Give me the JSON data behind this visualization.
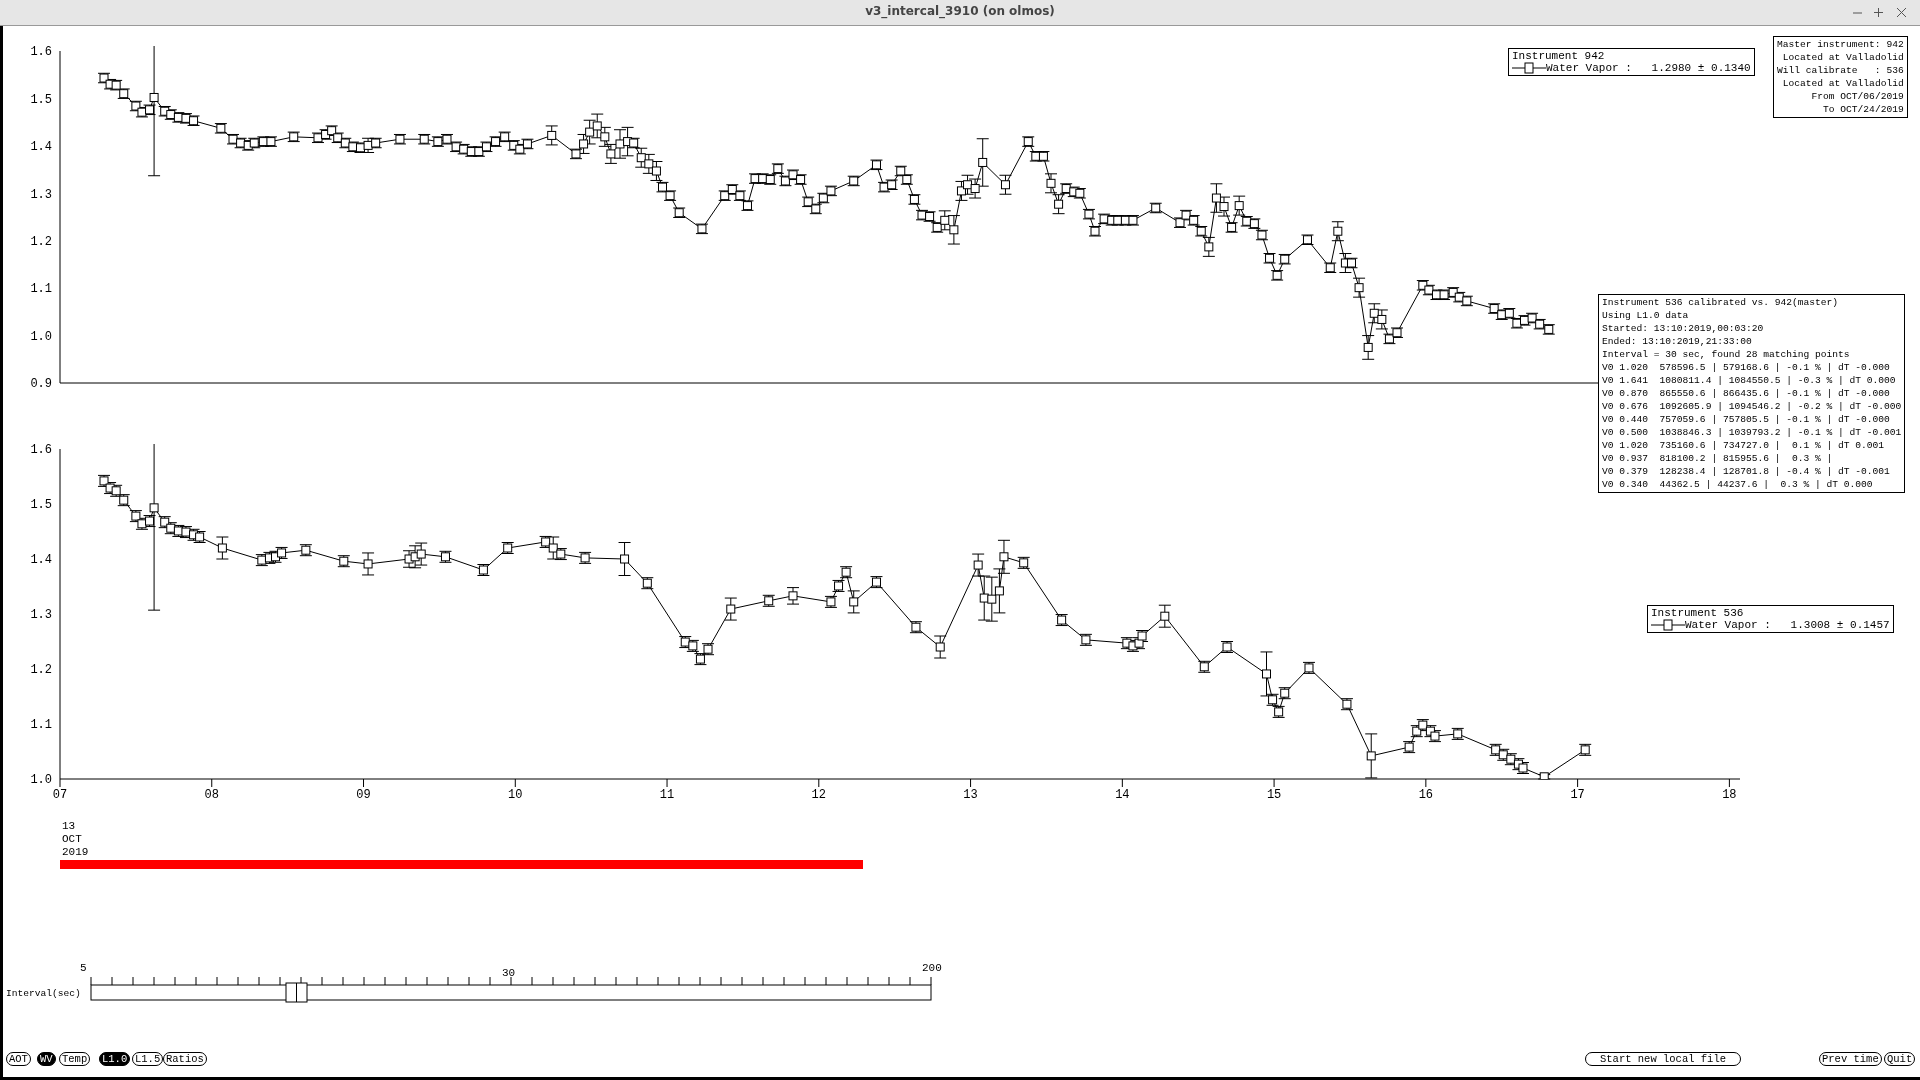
{
  "chart_data": [
    {
      "type": "line",
      "legend_title": "Instrument 942",
      "legend": "top right",
      "marker": "square",
      "line_style": "solid",
      "tick_labels": "y",
      "xlim": [
        7,
        18.07
      ],
      "ylim": [
        0.9,
        1.6
      ],
      "yticks": [
        0.9,
        {
          "value": 1,
          "label": "1.0"
        },
        1.1,
        1.2,
        1.3,
        1.4,
        1.5,
        1.6
      ],
      "annotations": [
        "Master instrument: 942\nLocated at Valladolid\nWill calibrate   : 536\nLocated at Valladolid\nFrom OCT/06/2019\nTo OCT/24/2019",
        "Instrument 536 calibrated vs. 942(master)\nUsing L1.0 data\nStarted: 13:10:2019,00:03:20\nEnded: 13:10:2019,21:33:00\nInterval = 30 sec, found 28 matching points\nV0 1.020  578596.5 | 579168.6 | -0.1 % | dT -0.000\nV0 1.641  1080811.4 | 1084550.5 | -0.3 % | dT 0.000\nV0 0.870  865550.6 | 866435.6 | -0.1 % | dT -0.000\nV0 0.676  1092605.9 | 1094546.2 | -0.2 % | dT -0.000\nV0 0.440  757059.6 | 757805.5 | -0.1 % | dT -0.000\nV0 0.500  1038846.3 | 1039793.2 | -0.1 % | dT -0.001\nV0 1.020  735160.6 | 734727.0 |  0.1 % | dT 0.001\nV0 0.937  818100.2 | 815955.6 |  0.3 % |\nV0 0.379  128238.4 | 128701.8 | -0.4 % | dT -0.001\nV0 0.340  44362.5 | 44237.6 |  0.3 % | dT 0.000"
      ],
      "series": [
        {
          "name": "Water Vapor :   1.2980 ± 0.1340",
          "color": "#000000",
          "x": [
            7.29,
            7.33,
            7.37,
            7.42,
            7.5,
            7.54,
            7.59,
            7.62,
            7.69,
            7.73,
            7.78,
            7.83,
            7.88,
            8.06,
            8.14,
            8.19,
            8.24,
            8.28,
            8.34,
            8.39,
            8.54,
            8.7,
            8.75,
            8.79,
            8.83,
            8.88,
            8.93,
            8.98,
            9.03,
            9.08,
            9.24,
            9.4,
            9.49,
            9.55,
            9.61,
            9.66,
            9.71,
            9.76,
            9.81,
            9.87,
            9.93,
            9.99,
            10.03,
            10.08,
            10.24,
            10.4,
            10.45,
            10.49,
            10.54,
            10.59,
            10.63,
            10.69,
            10.74,
            10.78,
            10.83,
            10.88,
            10.93,
            10.97,
            11.02,
            11.08,
            11.23,
            11.38,
            11.43,
            11.48,
            11.53,
            11.58,
            11.63,
            11.68,
            11.73,
            11.78,
            11.83,
            11.88,
            11.93,
            11.98,
            12.03,
            12.08,
            12.23,
            12.38,
            12.43,
            12.48,
            12.54,
            12.58,
            12.63,
            12.68,
            12.73,
            12.78,
            12.83,
            12.89,
            12.94,
            12.98,
            13.03,
            13.08,
            13.23,
            13.38,
            13.43,
            13.48,
            13.53,
            13.58,
            13.63,
            13.68,
            13.72,
            13.78,
            13.82,
            13.88,
            13.93,
            13.97,
            14.02,
            14.07,
            14.22,
            14.38,
            14.42,
            14.47,
            14.52,
            14.57,
            14.62,
            14.67,
            14.72,
            14.77,
            14.82,
            14.87,
            14.92,
            14.97,
            15.02,
            15.07,
            15.22,
            15.37,
            15.42,
            15.47,
            15.51,
            15.56,
            15.62,
            15.66,
            15.71,
            15.76,
            15.81,
            15.98,
            16.02,
            16.07,
            16.12,
            16.18,
            16.22,
            16.27,
            16.45,
            16.5,
            16.55,
            16.6,
            16.65,
            16.7,
            16.75,
            16.81
          ],
          "values": [
            1.543,
            1.53,
            1.528,
            1.51,
            1.484,
            1.471,
            1.476,
            1.502,
            1.473,
            1.466,
            1.46,
            1.458,
            1.453,
            1.437,
            1.414,
            1.406,
            1.401,
            1.406,
            1.409,
            1.409,
            1.419,
            1.417,
            1.424,
            1.432,
            1.417,
            1.406,
            1.398,
            1.396,
            1.401,
            1.406,
            1.414,
            1.414,
            1.409,
            1.414,
            1.398,
            1.393,
            1.388,
            1.388,
            1.398,
            1.409,
            1.419,
            1.401,
            1.393,
            1.404,
            1.422,
            1.383,
            1.404,
            1.429,
            1.442,
            1.419,
            1.383,
            1.404,
            1.409,
            1.406,
            1.375,
            1.362,
            1.347,
            1.313,
            1.295,
            1.259,
            1.225,
            1.295,
            1.308,
            1.295,
            1.274,
            1.331,
            1.331,
            1.329,
            1.352,
            1.326,
            1.339,
            1.329,
            1.282,
            1.267,
            1.29,
            1.305,
            1.326,
            1.36,
            1.313,
            1.318,
            1.347,
            1.329,
            1.287,
            1.254,
            1.251,
            1.228,
            1.243,
            1.223,
            1.305,
            1.318,
            1.31,
            1.365,
            1.318,
            1.409,
            1.378,
            1.378,
            1.321,
            1.277,
            1.31,
            1.303,
            1.3,
            1.256,
            1.22,
            1.246,
            1.243,
            1.243,
            1.243,
            1.243,
            1.269,
            1.238,
            1.254,
            1.243,
            1.22,
            1.187,
            1.29,
            1.272,
            1.228,
            1.274,
            1.241,
            1.236,
            1.212,
            1.163,
            1.127,
            1.161,
            1.202,
            1.143,
            1.22,
            1.153,
            1.153,
            1.101,
            0.975,
            1.047,
            1.034,
            0.993,
            1.006,
            1.106,
            1.096,
            1.086,
            1.086,
            1.091,
            1.081,
            1.073,
            1.057,
            1.044,
            1.047,
            1.026,
            1.032,
            1.037,
            1.024,
            1.013
          ],
          "errors": [
            0.01,
            0.01,
            0.01,
            0.01,
            0.01,
            0.01,
            0.01,
            0.165,
            0.01,
            0.01,
            0.01,
            0.01,
            0.01,
            0.01,
            0.01,
            0.01,
            0.01,
            0.01,
            0.01,
            0.01,
            0.01,
            0.01,
            0.01,
            0.01,
            0.01,
            0.01,
            0.01,
            0.01,
            0.015,
            0.01,
            0.01,
            0.01,
            0.01,
            0.01,
            0.01,
            0.01,
            0.01,
            0.01,
            0.01,
            0.01,
            0.01,
            0.01,
            0.01,
            0.01,
            0.02,
            0.01,
            0.02,
            0.025,
            0.025,
            0.02,
            0.02,
            0.03,
            0.03,
            0.01,
            0.02,
            0.02,
            0.02,
            0.01,
            0.01,
            0.01,
            0.01,
            0.01,
            0.01,
            0.01,
            0.01,
            0.01,
            0.01,
            0.01,
            0.01,
            0.01,
            0.01,
            0.01,
            0.01,
            0.01,
            0.01,
            0.01,
            0.01,
            0.01,
            0.01,
            0.01,
            0.01,
            0.01,
            0.01,
            0.01,
            0.01,
            0.01,
            0.02,
            0.03,
            0.02,
            0.02,
            0.02,
            0.05,
            0.02,
            0.01,
            0.01,
            0.01,
            0.02,
            0.02,
            0.01,
            0.01,
            0.01,
            0.01,
            0.01,
            0.01,
            0.01,
            0.01,
            0.01,
            0.01,
            0.01,
            0.01,
            0.01,
            0.01,
            0.01,
            0.02,
            0.03,
            0.02,
            0.01,
            0.02,
            0.01,
            0.01,
            0.01,
            0.01,
            0.01,
            0.01,
            0.01,
            0.01,
            0.02,
            0.02,
            0.01,
            0.02,
            0.025,
            0.02,
            0.02,
            0.01,
            0.01,
            0.01,
            0.01,
            0.01,
            0.01,
            0.01,
            0.01,
            0.01,
            0.01,
            0.01,
            0.01,
            0.01,
            0.01,
            0.01,
            0.01,
            0.01
          ]
        }
      ]
    },
    {
      "type": "line",
      "legend_title": "Instrument 536",
      "legend": "right",
      "marker": "square",
      "line_style": "solid",
      "xlim": [
        7,
        18.07
      ],
      "ylim": [
        1.0,
        1.6
      ],
      "xticks": [
        {
          "value": 7,
          "label": "07"
        },
        {
          "value": 8,
          "label": "08"
        },
        {
          "value": 9,
          "label": "09"
        },
        {
          "value": 10,
          "label": "10"
        },
        {
          "value": 11,
          "label": "11"
        },
        {
          "value": 12,
          "label": "12"
        },
        {
          "value": 13,
          "label": "13"
        },
        {
          "value": 14,
          "label": "14"
        },
        {
          "value": 15,
          "label": "15"
        },
        {
          "value": 16,
          "label": "16"
        },
        {
          "value": 17,
          "label": "17"
        },
        {
          "value": 18,
          "label": "18"
        }
      ],
      "yticks": [
        {
          "value": 1,
          "label": "1.0"
        },
        1.1,
        1.2,
        1.3,
        1.4,
        1.5,
        1.6
      ],
      "annotations": [
        "13\nOCT\n2019"
      ],
      "series": [
        {
          "name": "Water Vapor :   1.3008 ± 0.1457",
          "color": "#000000",
          "x": [
            7.29,
            7.33,
            7.37,
            7.42,
            7.5,
            7.54,
            7.59,
            7.62,
            7.69,
            7.73,
            7.78,
            7.83,
            7.88,
            7.92,
            8.07,
            8.33,
            8.38,
            8.42,
            8.46,
            8.62,
            8.87,
            9.03,
            9.3,
            9.34,
            9.38,
            9.54,
            9.79,
            9.95,
            10.2,
            10.25,
            10.3,
            10.46,
            10.72,
            10.87,
            11.12,
            11.17,
            11.22,
            11.27,
            11.42,
            11.67,
            11.83,
            12.08,
            12.13,
            12.18,
            12.23,
            12.38,
            12.64,
            12.8,
            13.05,
            13.09,
            13.14,
            13.19,
            13.22,
            13.35,
            13.6,
            13.76,
            14.03,
            14.07,
            14.11,
            14.13,
            14.28,
            14.54,
            14.69,
            14.95,
            14.99,
            15.03,
            15.07,
            15.23,
            15.48,
            15.64,
            15.89,
            15.94,
            15.98,
            16.03,
            16.06,
            16.21,
            16.46,
            16.51,
            16.56,
            16.61,
            16.64,
            16.78,
            17.05
          ],
          "values": [
            1.542,
            1.529,
            1.524,
            1.507,
            1.478,
            1.464,
            1.469,
            1.493,
            1.467,
            1.456,
            1.451,
            1.449,
            1.444,
            1.44,
            1.42,
            1.398,
            1.402,
            1.404,
            1.411,
            1.416,
            1.396,
            1.391,
            1.4,
            1.404,
            1.409,
            1.404,
            1.38,
            1.42,
            1.431,
            1.42,
            1.409,
            1.402,
            1.4,
            1.356,
            1.249,
            1.242,
            1.218,
            1.236,
            1.309,
            1.324,
            1.333,
            1.322,
            1.351,
            1.376,
            1.322,
            1.358,
            1.276,
            1.24,
            1.389,
            1.329,
            1.327,
            1.342,
            1.404,
            1.393,
            1.289,
            1.253,
            1.247,
            1.242,
            1.247,
            1.26,
            1.296,
            1.204,
            1.24,
            1.191,
            1.144,
            1.122,
            1.156,
            1.202,
            1.136,
            1.042,
            1.058,
            1.087,
            1.098,
            1.087,
            1.078,
            1.082,
            1.053,
            1.044,
            1.036,
            1.027,
            1.02,
            1.004,
            1.053
          ],
          "errors": [
            0.01,
            0.01,
            0.01,
            0.01,
            0.01,
            0.01,
            0.01,
            0.186,
            0.01,
            0.01,
            0.01,
            0.01,
            0.01,
            0.01,
            0.02,
            0.01,
            0.01,
            0.01,
            0.01,
            0.01,
            0.01,
            0.02,
            0.015,
            0.02,
            0.02,
            0.01,
            0.01,
            0.01,
            0.01,
            0.02,
            0.01,
            0.01,
            0.03,
            0.01,
            0.01,
            0.01,
            0.01,
            0.01,
            0.02,
            0.01,
            0.015,
            0.01,
            0.01,
            0.01,
            0.02,
            0.01,
            0.01,
            0.02,
            0.02,
            0.04,
            0.04,
            0.04,
            0.03,
            0.01,
            0.01,
            0.01,
            0.01,
            0.01,
            0.01,
            0.01,
            0.02,
            0.01,
            0.01,
            0.04,
            0.01,
            0.01,
            0.01,
            0.01,
            0.01,
            0.04,
            0.01,
            0.01,
            0.01,
            0.01,
            0.01,
            0.01,
            0.01,
            0.01,
            0.01,
            0.01,
            0.01,
            0.004,
            0.01
          ]
        }
      ]
    },
    {
      "type": "other",
      "annotations": [
        "v3_intercal_3910 (on olmos)",
        "Interval(sec)",
        "5",
        "30",
        "200",
        "AOT",
        "WV",
        "Temp",
        "L1.0",
        "L1.5",
        "Ratios",
        "Start new local file",
        "Prev time",
        "Quit"
      ]
    }
  ]
}
